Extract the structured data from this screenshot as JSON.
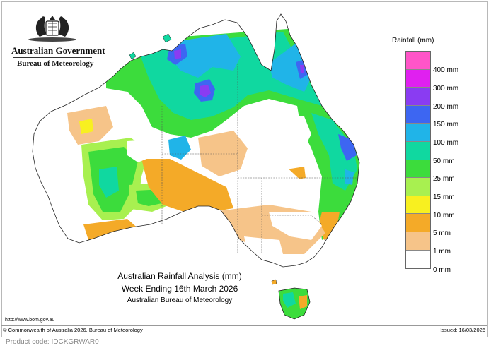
{
  "header": {
    "government": "Australian Government",
    "bureau": "Bureau of Meteorology"
  },
  "legend": {
    "title": "Rainfall (mm)",
    "items": [
      {
        "label": "400 mm",
        "color": "#ff55c8"
      },
      {
        "label": "300 mm",
        "color": "#e020f0"
      },
      {
        "label": "200 mm",
        "color": "#8a3cf2"
      },
      {
        "label": "150 mm",
        "color": "#3d66f2"
      },
      {
        "label": "100 mm",
        "color": "#20b4e8"
      },
      {
        "label": "50 mm",
        "color": "#10d8a0"
      },
      {
        "label": "25 mm",
        "color": "#3cdc3c"
      },
      {
        "label": "15 mm",
        "color": "#a8f050"
      },
      {
        "label": "10 mm",
        "color": "#f8f020"
      },
      {
        "label": "5 mm",
        "color": "#f4aa28"
      },
      {
        "label": "1 mm",
        "color": "#f6c489"
      },
      {
        "label": "0 mm",
        "color": "#ffffff"
      }
    ]
  },
  "title": {
    "line1": "Australian Rainfall Analysis (mm)",
    "line2": "Week Ending 16th March 2026",
    "line3": "Australian Bureau of Meteorology"
  },
  "footer": {
    "url": "http://www.bom.gov.au",
    "copyright": "© Commonwealth of Australia 2026, Bureau of Meteorology",
    "issued": "Issued: 16/03/2026",
    "product_code": "Product code: IDCKGRWAR0"
  }
}
